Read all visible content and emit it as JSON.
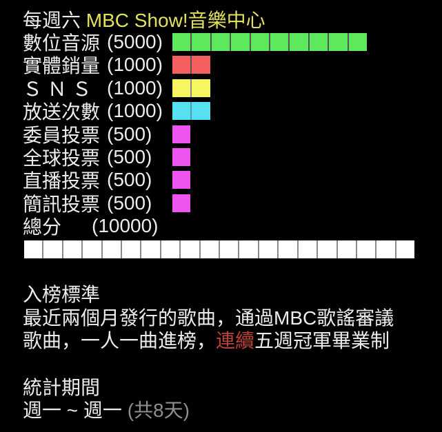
{
  "title": {
    "prefix": "每週六 ",
    "highlight": "MBC Show!音樂中心",
    "highlight_color": "#e3e15a"
  },
  "chart_data": {
    "type": "bar",
    "title": "每週六 MBC Show!音樂中心",
    "unit_per_segment": 500,
    "max_total": 10000,
    "legend_position": "none",
    "grid": false,
    "rows": [
      {
        "label": "數位音源",
        "value_label": "(5000)",
        "value": 5000,
        "segments": 10,
        "color": "#5ee85e",
        "divider": "#555555",
        "total": false
      },
      {
        "label": "實體銷量",
        "value_label": "(1000)",
        "value": 1000,
        "segments": 2,
        "color": "#f55f5f",
        "divider": "#555555",
        "total": false
      },
      {
        "label": "Ｓ Ｎ Ｓ",
        "value_label": "(1000)",
        "value": 1000,
        "segments": 2,
        "color": "#f8f65f",
        "divider": "#888888",
        "total": false
      },
      {
        "label": "放送次數",
        "value_label": "(1000)",
        "value": 1000,
        "segments": 2,
        "color": "#55e1f2",
        "divider": "#559aa8",
        "total": false
      },
      {
        "label": "委員投票",
        "value_label": "(500)",
        "value": 500,
        "segments": 1,
        "color": "#ee55ee",
        "divider": "#555555",
        "total": false
      },
      {
        "label": "全球投票",
        "value_label": "(500)",
        "value": 500,
        "segments": 1,
        "color": "#ee55ee",
        "divider": "#555555",
        "total": false
      },
      {
        "label": "直播投票",
        "value_label": "(500)",
        "value": 500,
        "segments": 1,
        "color": "#ee55ee",
        "divider": "#555555",
        "total": false
      },
      {
        "label": "簡訊投票",
        "value_label": "(500)",
        "value": 500,
        "segments": 1,
        "color": "#ee55ee",
        "divider": "#555555",
        "total": false
      },
      {
        "label": "總分",
        "value_label": "(10000)",
        "value": 10000,
        "segments": 20,
        "color": "#ffffff",
        "divider": "#8a8a8a",
        "total": true
      }
    ]
  },
  "criteria": {
    "heading": "入榜標準",
    "line1": "最近兩個月發行的歌曲，通過MBC歌謠審議",
    "line2_pre": "歌曲，一人一曲進榜，",
    "line2_red": "連續",
    "line2_post": "五週冠軍畢業制",
    "red_color": "#bb4138"
  },
  "period": {
    "heading": "統計期間",
    "range": "週一 ~ 週一 ",
    "note": "(共8天)",
    "note_color": "#8f8f8f"
  }
}
